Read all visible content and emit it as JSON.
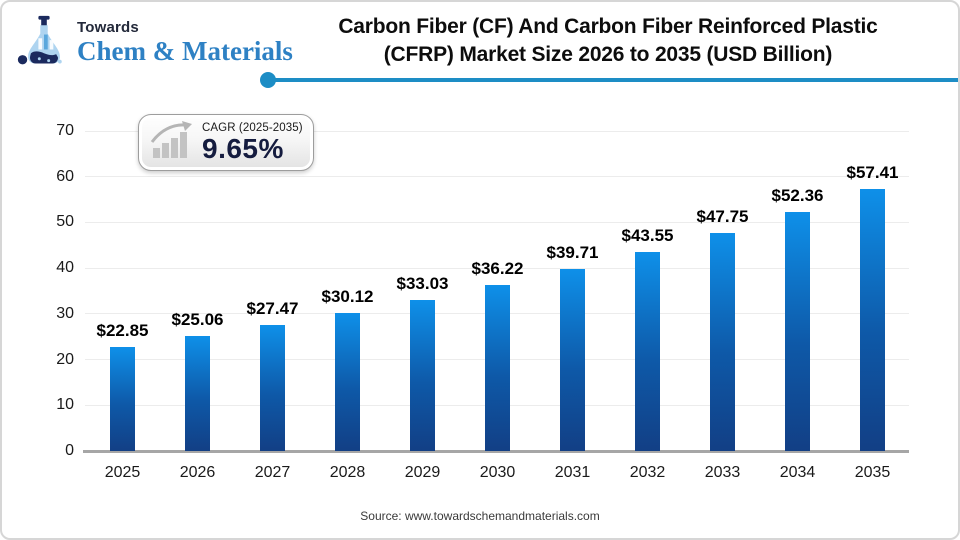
{
  "header": {
    "logo": {
      "top_text": "Towards",
      "brand_text": "Chem & Materials",
      "brand_color": "#2e81c4",
      "navy_color": "#1b2a5e"
    }
  },
  "title_lines": [
    "Carbon Fiber (CF) And Carbon Fiber Reinforced Plastic",
    "(CFRP) Market Size 2026 to 2035 (USD Billion)"
  ],
  "cagr_badge": {
    "label": "CAGR (2025-2035)",
    "value": "9.65%"
  },
  "chart_data": {
    "type": "bar",
    "title": "Carbon Fiber (CF) And Carbon Fiber Reinforced Plastic (CFRP) Market Size 2026 to 2035 (USD Billion)",
    "unit": "USD Billion",
    "categories": [
      "2025",
      "2026",
      "2027",
      "2028",
      "2029",
      "2030",
      "2031",
      "2032",
      "2033",
      "2034",
      "2035"
    ],
    "values": [
      22.85,
      25.06,
      27.47,
      30.12,
      33.03,
      36.22,
      39.71,
      43.55,
      47.75,
      52.36,
      57.41
    ],
    "value_labels": [
      "$22.85",
      "$25.06",
      "$27.47",
      "$30.12",
      "$33.03",
      "$36.22",
      "$39.71",
      "$43.55",
      "$47.75",
      "$52.36",
      "$57.41"
    ],
    "xlabel": "",
    "ylabel": "",
    "ylim": [
      0,
      70
    ],
    "ytick": 10,
    "grid": "horizontal",
    "legend": "none",
    "bar_color_top": "#0e90e9",
    "bar_color_bottom": "#123f85",
    "gridline_color": "#ececec",
    "axis_color": "#a6a6a6"
  },
  "source_text": "Source: www.towardschemandmaterials.com",
  "colors": {
    "title_underline": "#1d8dc5",
    "badge_value": "#151c3f"
  }
}
